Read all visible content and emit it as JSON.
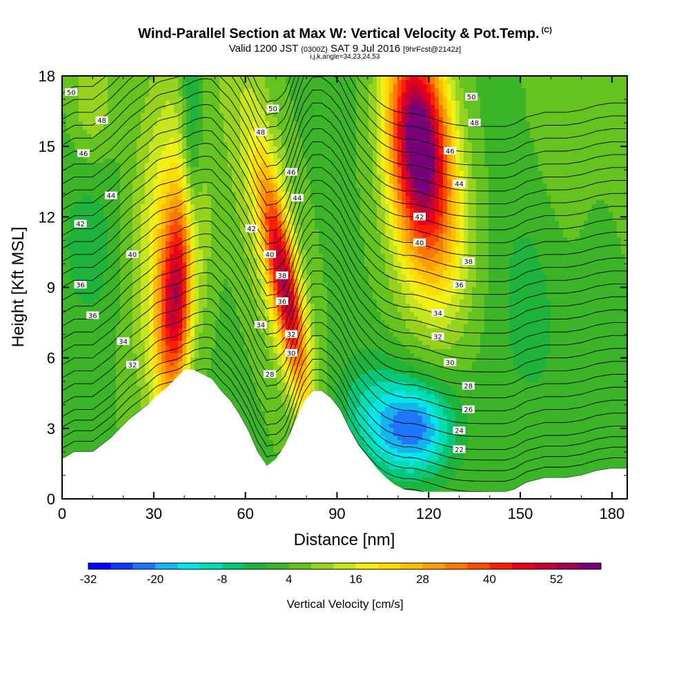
{
  "title": {
    "main": "Wind-Parallel Section at Max W: Vertical Velocity & Pot.Temp.",
    "main_mark": "(C)",
    "valid_prefix": "Valid 1200 JST",
    "valid_utc": "(0300Z)",
    "valid_date": "SAT 9 Jul 2016",
    "forecast": "[9hrFcst@2142z]",
    "indices": "i,j,k,angle=34,23,24,53"
  },
  "colorbar": {
    "label": "Vertical Velocity [cm/s]",
    "tick_labels": [
      "-32",
      "-20",
      "-8",
      "4",
      "16",
      "28",
      "40",
      "52"
    ],
    "levels": [
      -32,
      -28,
      -24,
      -20,
      -16,
      -12,
      -8,
      -4,
      0,
      4,
      8,
      12,
      16,
      20,
      24,
      28,
      32,
      36,
      40,
      44,
      48,
      52,
      56,
      60
    ],
    "colors": [
      "#0000ff",
      "#0a3cff",
      "#1e78ff",
      "#14b4f0",
      "#00e6e6",
      "#00dcb4",
      "#00c878",
      "#1eb43c",
      "#3cb428",
      "#64c31e",
      "#96d21e",
      "#c8e61e",
      "#f0f014",
      "#ffdc00",
      "#ffbe00",
      "#ffa000",
      "#ff7800",
      "#ff4b00",
      "#ff1e00",
      "#e6001e",
      "#c80032",
      "#a00050",
      "#780078"
    ],
    "terrain_color": "#ffffff"
  },
  "chart_data": {
    "type": "heatmap",
    "title": "Wind-Parallel Section at Max W: Vertical Velocity & Pot.Temp.",
    "xlabel": "Distance [nm]",
    "ylabel": "Height [Kft MSL]",
    "xlim": [
      0,
      185
    ],
    "ylim": [
      0,
      18
    ],
    "x_ticks": [
      0,
      30,
      60,
      90,
      120,
      150,
      180
    ],
    "y_ticks": [
      0,
      3,
      6,
      9,
      12,
      15,
      18
    ],
    "colorbar_label": "Vertical Velocity [cm/s]",
    "colorbar_range": [
      -32,
      60
    ],
    "terrain_profile": {
      "x": [
        0,
        4,
        10,
        13,
        16,
        19,
        22,
        25,
        28,
        31,
        34,
        37,
        40,
        43,
        46,
        49,
        52,
        55,
        58,
        61,
        64,
        67,
        70,
        73,
        76,
        79,
        82,
        85,
        88,
        91,
        94,
        97,
        100,
        103,
        106,
        109,
        112,
        115,
        118,
        121,
        124,
        127,
        130,
        136,
        140,
        145,
        148,
        152,
        158,
        165,
        170,
        175,
        180,
        185
      ],
      "height_kft": [
        1.7,
        2.0,
        2.0,
        2.3,
        2.6,
        3.0,
        3.4,
        3.7,
        4.0,
        4.4,
        4.7,
        5.1,
        5.5,
        5.5,
        5.3,
        5.1,
        4.6,
        4.2,
        3.6,
        2.9,
        2.0,
        1.4,
        1.7,
        2.3,
        3.2,
        4.1,
        4.6,
        4.6,
        4.3,
        3.8,
        3.0,
        2.3,
        1.8,
        1.3,
        0.9,
        0.6,
        0.4,
        0.35,
        0.3,
        0.3,
        0.3,
        0.3,
        0.3,
        0.3,
        0.3,
        0.3,
        0.4,
        0.7,
        0.9,
        0.9,
        1.0,
        1.2,
        1.3,
        1.3
      ]
    },
    "vertical_velocity_features": [
      {
        "kind": "updraft",
        "x_nm": 38,
        "z_kft": 8.5,
        "peak_cm_s": 44
      },
      {
        "kind": "downdraft",
        "x_nm": 43,
        "z_kft": 14,
        "peak_cm_s": -12
      },
      {
        "kind": "updraft",
        "x_nm": 72,
        "z_kft": 9,
        "peak_cm_s": 44
      },
      {
        "kind": "downdraft",
        "x_nm": 115,
        "z_kft": 3,
        "peak_cm_s": -24
      },
      {
        "kind": "updraft",
        "x_nm": 117,
        "z_kft": 15.5,
        "peak_cm_s": 60
      }
    ],
    "contour_series": [
      {
        "name": "Pot.Temp. (C)",
        "levels": [
          22,
          24,
          26,
          28,
          30,
          32,
          34,
          36,
          38,
          40,
          42,
          44,
          46,
          48,
          50
        ]
      }
    ],
    "contour_labels": [
      {
        "text": "50",
        "x": 3,
        "z": 17.3
      },
      {
        "text": "48",
        "x": 13,
        "z": 16.1
      },
      {
        "text": "46",
        "x": 7,
        "z": 14.7
      },
      {
        "text": "44",
        "x": 16,
        "z": 12.9
      },
      {
        "text": "42",
        "x": 6,
        "z": 11.7
      },
      {
        "text": "40",
        "x": 23,
        "z": 10.4
      },
      {
        "text": "36",
        "x": 6,
        "z": 9.1
      },
      {
        "text": "36",
        "x": 10,
        "z": 7.8
      },
      {
        "text": "34",
        "x": 20,
        "z": 6.7
      },
      {
        "text": "32",
        "x": 23,
        "z": 5.7
      },
      {
        "text": "50",
        "x": 69,
        "z": 16.6
      },
      {
        "text": "48",
        "x": 65,
        "z": 15.6
      },
      {
        "text": "46",
        "x": 75,
        "z": 13.9
      },
      {
        "text": "44",
        "x": 77,
        "z": 12.8
      },
      {
        "text": "42",
        "x": 62,
        "z": 11.5
      },
      {
        "text": "40",
        "x": 68,
        "z": 10.4
      },
      {
        "text": "38",
        "x": 72,
        "z": 9.5
      },
      {
        "text": "36",
        "x": 72,
        "z": 8.4
      },
      {
        "text": "34",
        "x": 65,
        "z": 7.4
      },
      {
        "text": "32",
        "x": 75,
        "z": 7.0
      },
      {
        "text": "30",
        "x": 75,
        "z": 6.2
      },
      {
        "text": "28",
        "x": 68,
        "z": 5.3
      },
      {
        "text": "50",
        "x": 134,
        "z": 17.1
      },
      {
        "text": "48",
        "x": 135,
        "z": 16.0
      },
      {
        "text": "46",
        "x": 127,
        "z": 14.8
      },
      {
        "text": "44",
        "x": 130,
        "z": 13.4
      },
      {
        "text": "42",
        "x": 117,
        "z": 12.0
      },
      {
        "text": "40",
        "x": 117,
        "z": 10.9
      },
      {
        "text": "38",
        "x": 133,
        "z": 10.1
      },
      {
        "text": "36",
        "x": 130,
        "z": 9.1
      },
      {
        "text": "34",
        "x": 123,
        "z": 7.9
      },
      {
        "text": "32",
        "x": 123,
        "z": 6.9
      },
      {
        "text": "30",
        "x": 127,
        "z": 5.8
      },
      {
        "text": "28",
        "x": 133,
        "z": 4.8
      },
      {
        "text": "26",
        "x": 133,
        "z": 3.8
      },
      {
        "text": "24",
        "x": 130,
        "z": 2.9
      },
      {
        "text": "22",
        "x": 130,
        "z": 2.1
      }
    ]
  }
}
